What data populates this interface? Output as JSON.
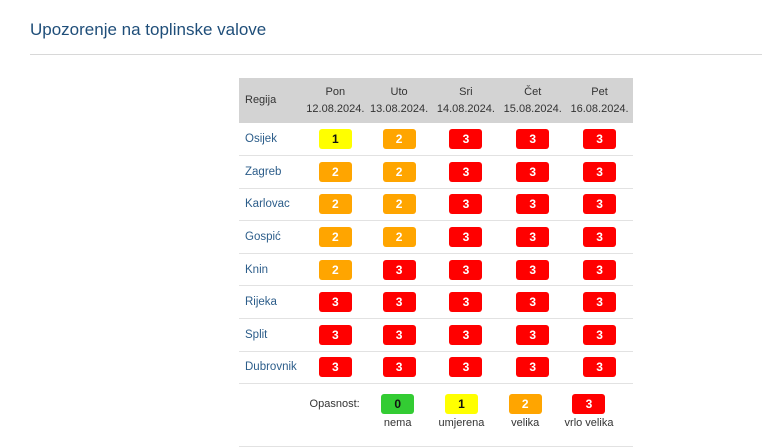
{
  "title": "Upozorenje na toplinske valove",
  "table": {
    "region_header": "Regija",
    "days": [
      {
        "name": "Pon",
        "date": "12.08.2024."
      },
      {
        "name": "Uto",
        "date": "13.08.2024."
      },
      {
        "name": "Sri",
        "date": "14.08.2024."
      },
      {
        "name": "Čet",
        "date": "15.08.2024."
      },
      {
        "name": "Pet",
        "date": "16.08.2024."
      }
    ],
    "rows": [
      {
        "region": "Osijek",
        "levels": [
          "1",
          "2",
          "3",
          "3",
          "3"
        ]
      },
      {
        "region": "Zagreb",
        "levels": [
          "2",
          "2",
          "3",
          "3",
          "3"
        ]
      },
      {
        "region": "Karlovac",
        "levels": [
          "2",
          "2",
          "3",
          "3",
          "3"
        ]
      },
      {
        "region": "Gospić",
        "levels": [
          "2",
          "2",
          "3",
          "3",
          "3"
        ]
      },
      {
        "region": "Knin",
        "levels": [
          "2",
          "3",
          "3",
          "3",
          "3"
        ]
      },
      {
        "region": "Rijeka",
        "levels": [
          "3",
          "3",
          "3",
          "3",
          "3"
        ]
      },
      {
        "region": "Split",
        "levels": [
          "3",
          "3",
          "3",
          "3",
          "3"
        ]
      },
      {
        "region": "Dubrovnik",
        "levels": [
          "3",
          "3",
          "3",
          "3",
          "3"
        ]
      }
    ]
  },
  "legend": {
    "label": "Opasnost:",
    "items": [
      {
        "value": "0",
        "text": "nema"
      },
      {
        "value": "1",
        "text": "umjerena"
      },
      {
        "value": "2",
        "text": "velika"
      },
      {
        "value": "3",
        "text": "vrlo velika"
      }
    ]
  },
  "colors": {
    "level_0": "#33cc33",
    "level_1": "#ffff00",
    "level_2": "#ffa500",
    "level_3": "#ff0000",
    "title": "#1f4e79",
    "header_bg": "#d3d3d3"
  }
}
